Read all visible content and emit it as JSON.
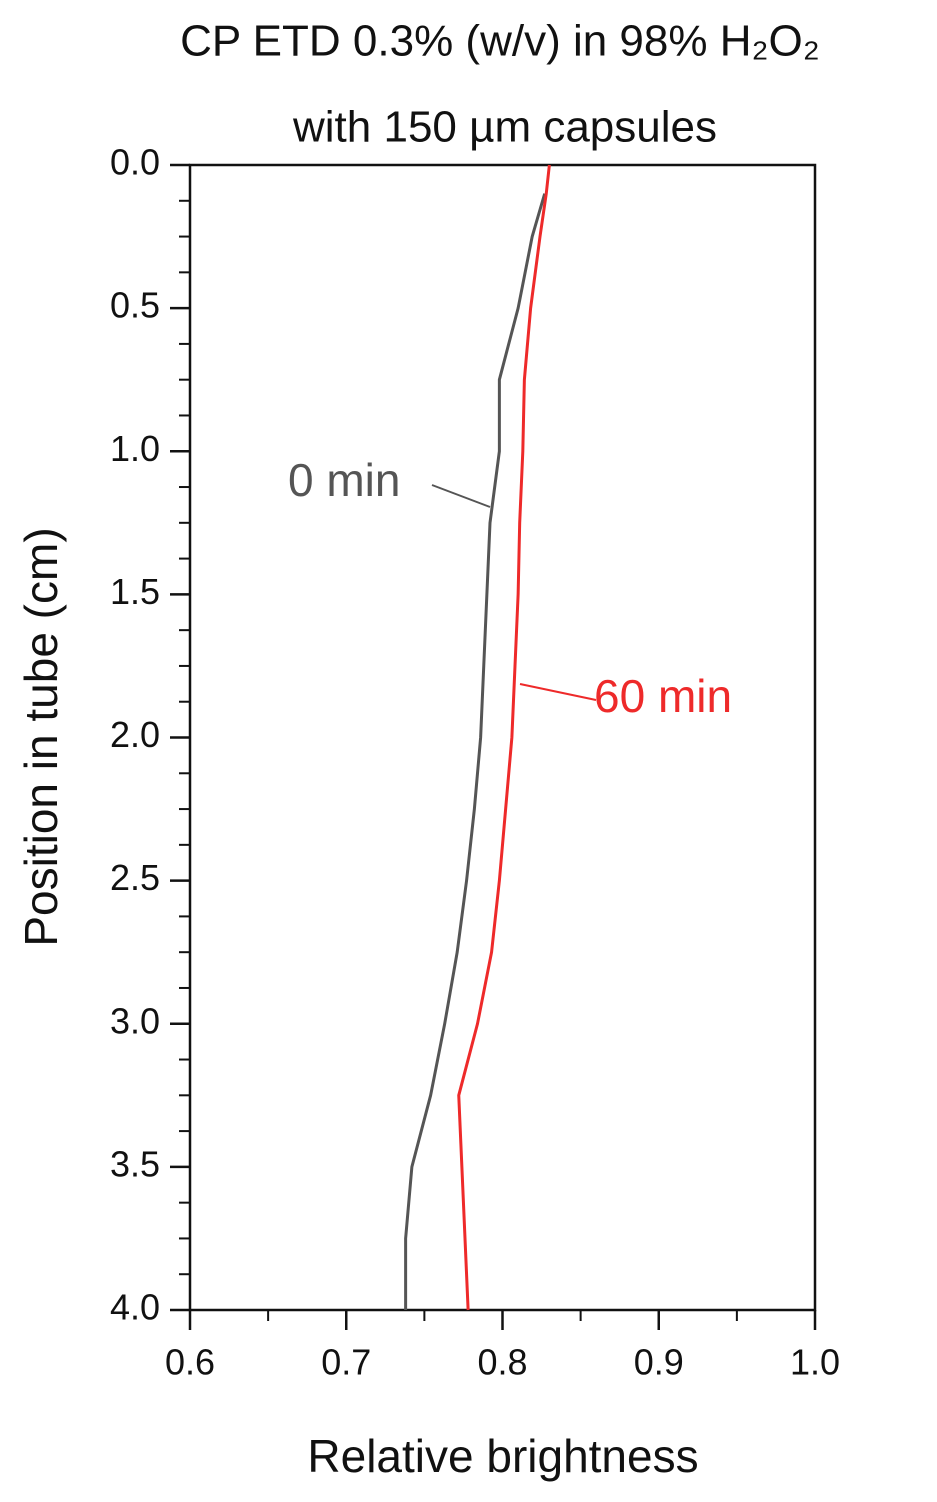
{
  "chart_data": {
    "type": "line",
    "title": "CP ETD 0.3% (w/v) in 98% H₂O₂",
    "subtitle": "with 150 µm capsules",
    "x_label": "Relative brightness",
    "y_label": "Position in tube (cm)",
    "y_inverted": true,
    "positions": [
      0,
      0.1,
      0.25,
      0.5,
      0.75,
      1.0,
      1.25,
      1.5,
      1.75,
      2.0,
      2.25,
      2.5,
      2.75,
      3.0,
      3.25,
      3.5,
      3.75,
      4.0
    ],
    "series": [
      {
        "name": "0 min",
        "color": "#555555",
        "values": [
          null,
          0.827,
          0.819,
          0.81,
          0.798,
          0.798,
          0.792,
          0.79,
          0.788,
          0.786,
          0.782,
          0.777,
          0.771,
          0.763,
          0.754,
          0.742,
          0.738,
          0.738
        ]
      },
      {
        "name": "60 min",
        "color": "#ee2a2a",
        "values": [
          0.83,
          0.828,
          0.824,
          0.818,
          0.814,
          0.813,
          0.811,
          0.81,
          0.808,
          0.806,
          0.802,
          0.798,
          0.793,
          0.784,
          0.772,
          0.774,
          0.776,
          0.778
        ]
      }
    ],
    "xlim": [
      0.6,
      1.0
    ],
    "xticks": [
      0.6,
      0.7,
      0.8,
      0.9,
      {
        "value": 1,
        "label": "1.0"
      }
    ],
    "ylim": [
      0,
      4
    ],
    "yticks": [
      {
        "value": 0,
        "label": "0.0"
      },
      0.5,
      {
        "value": 1,
        "label": "1.0"
      },
      1.5,
      {
        "value": 2,
        "label": "2.0"
      },
      2.5,
      {
        "value": 3,
        "label": "3.0"
      },
      3.5,
      {
        "value": 4,
        "label": "4.0"
      }
    ],
    "x_minor_per_major": 1,
    "y_minor_per_major": 3
  }
}
